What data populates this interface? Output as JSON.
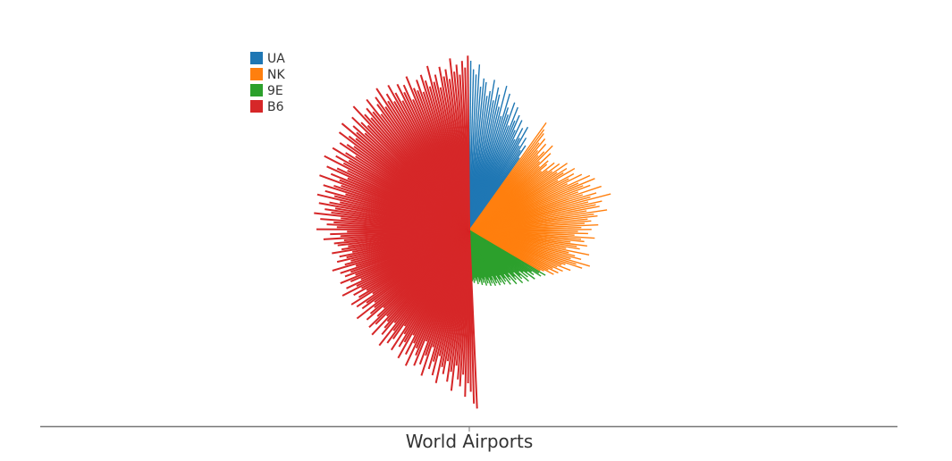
{
  "chart_data": {
    "type": "bar",
    "subtype": "radial-bar",
    "xlabel": "World Airports",
    "legend_position": "top-left",
    "grid": false,
    "radial_range": [
      0,
      1
    ],
    "series": [
      {
        "name": "UA",
        "color": "#1f77b4",
        "angle_range_deg": [
          0,
          35
        ],
        "values": [
          1,
          0.95,
          0.92,
          0.98,
          0.85,
          0.9,
          0.88,
          0.8,
          0.83,
          0.9,
          0.78,
          0.86,
          0.82,
          0.75,
          0.88,
          0.7,
          0.84,
          0.76,
          0.72,
          0.8,
          0.66,
          0.78,
          0.7,
          0.74,
          0.65,
          0.72,
          0.6,
          0.68,
          0.62,
          0.7,
          0.58,
          0.64,
          0.56,
          0.6,
          0.52
        ]
      },
      {
        "name": "NK",
        "color": "#ff7f0e",
        "angle_range_deg": [
          35,
          120
        ],
        "values": [
          0.78,
          0.74,
          0.72,
          0.66,
          0.7,
          0.62,
          0.68,
          0.6,
          0.64,
          0.7,
          0.58,
          0.66,
          0.56,
          0.62,
          0.6,
          0.55,
          0.64,
          0.58,
          0.66,
          0.6,
          0.7,
          0.62,
          0.68,
          0.65,
          0.72,
          0.6,
          0.7,
          0.66,
          0.74,
          0.64,
          0.78,
          0.7,
          0.8,
          0.72,
          0.76,
          0.68,
          0.82,
          0.7,
          0.78,
          0.74,
          0.86,
          0.72,
          0.8,
          0.76,
          0.78,
          0.7,
          0.82,
          0.74,
          0.76,
          0.7,
          0.72,
          0.68,
          0.76,
          0.66,
          0.72,
          0.64,
          0.7,
          0.62,
          0.74,
          0.66,
          0.68,
          0.6,
          0.7,
          0.64,
          0.66,
          0.58,
          0.72,
          0.6,
          0.64,
          0.68,
          0.62,
          0.74,
          0.66,
          0.7,
          0.6,
          0.58,
          0.64,
          0.56,
          0.6,
          0.54,
          0.58,
          0.52,
          0.56,
          0.5,
          0.48
        ]
      },
      {
        "name": "9E",
        "color": "#2ca02c",
        "angle_range_deg": [
          120,
          177
        ],
        "values": [
          0.52,
          0.48,
          0.5,
          0.44,
          0.46,
          0.42,
          0.48,
          0.4,
          0.44,
          0.38,
          0.46,
          0.4,
          0.42,
          0.36,
          0.44,
          0.38,
          0.4,
          0.34,
          0.42,
          0.36,
          0.38,
          0.33,
          0.4,
          0.35,
          0.37,
          0.32,
          0.38,
          0.34,
          0.36,
          0.31,
          0.37,
          0.33,
          0.35,
          0.3,
          0.36,
          0.32,
          0.34,
          0.3,
          0.35,
          0.31,
          0.33,
          0.29,
          0.34,
          0.3,
          0.32,
          0.29,
          0.33,
          0.3,
          0.31,
          0.28,
          0.32,
          0.29,
          0.3,
          0.28,
          0.31,
          0.29,
          0.3
        ]
      },
      {
        "name": "B6",
        "color": "#d62728",
        "angle_range_deg": [
          177,
          360
        ],
        "values": [
          1.05,
          1.02,
          0.95,
          0.9,
          0.98,
          0.85,
          0.92,
          0.88,
          0.8,
          0.95,
          0.84,
          0.9,
          0.78,
          0.86,
          0.82,
          0.92,
          0.76,
          0.88,
          0.8,
          0.85,
          0.72,
          0.9,
          0.78,
          0.84,
          0.7,
          0.86,
          0.8,
          0.76,
          0.88,
          0.74,
          0.82,
          0.7,
          0.86,
          0.76,
          0.8,
          0.72,
          0.84,
          0.68,
          0.78,
          0.82,
          0.74,
          0.86,
          0.7,
          0.8,
          0.76,
          0.72,
          0.84,
          0.7,
          0.78,
          0.82,
          0.74,
          0.68,
          0.8,
          0.76,
          0.72,
          0.84,
          0.7,
          0.78,
          0.74,
          0.8,
          0.68,
          0.82,
          0.76,
          0.7,
          0.78,
          0.72,
          0.84,
          0.74,
          0.8,
          0.7,
          0.76,
          0.82,
          0.72,
          0.78,
          0.74,
          0.8,
          0.7,
          0.84,
          0.76,
          0.72,
          0.8,
          0.74,
          0.78,
          0.7,
          0.82,
          0.76,
          0.72,
          0.78,
          0.8,
          0.74,
          0.86,
          0.76,
          0.82,
          0.72,
          0.9,
          0.78,
          0.84,
          0.8,
          0.88,
          0.76,
          0.92,
          0.82,
          0.86,
          0.8,
          0.9,
          0.84,
          0.78,
          0.92,
          0.82,
          0.88,
          0.76,
          0.9,
          0.84,
          0.8,
          0.94,
          0.82,
          0.88,
          0.78,
          0.92,
          0.86,
          0.8,
          0.96,
          0.84,
          0.9,
          0.82,
          0.94,
          0.86,
          0.8,
          0.92,
          0.88,
          0.84,
          0.96,
          0.9,
          0.86,
          0.98,
          0.88,
          0.92,
          0.84,
          0.96,
          0.9,
          0.86,
          1.0,
          0.92,
          0.88,
          0.94,
          0.9,
          0.98,
          0.86,
          0.92,
          0.96,
          0.88,
          1.0,
          0.9,
          0.94,
          0.88,
          0.98,
          0.92,
          0.86,
          0.96,
          0.9,
          0.94,
          0.84,
          0.98,
          0.9,
          0.88,
          0.94,
          0.86,
          0.96,
          0.92,
          0.88,
          1.0,
          0.9,
          0.94,
          0.86,
          0.98,
          0.92,
          0.96,
          0.9,
          1.02,
          0.94,
          0.98,
          0.92,
          1.0,
          0.96,
          1.03
        ]
      }
    ]
  }
}
